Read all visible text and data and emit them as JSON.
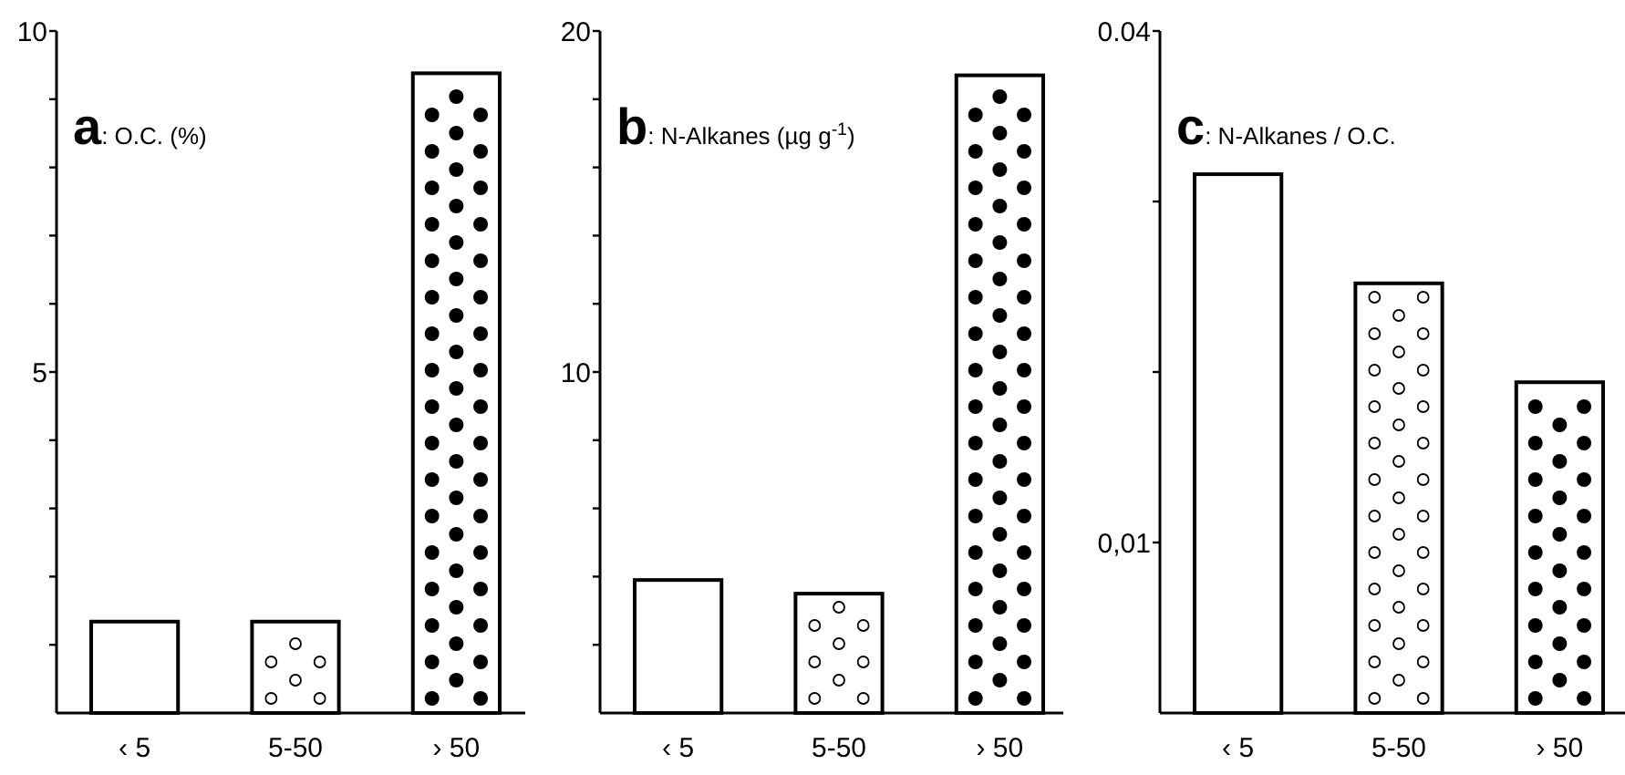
{
  "chart_data": [
    {
      "type": "bar",
      "title": "a: O.C. (%)",
      "categories": [
        "‹ 5",
        "5-50",
        "› 50"
      ],
      "values": [
        1.34,
        1.34,
        9.38
      ],
      "colors": [
        "#ffffff",
        "#ffffff",
        "#ffffff"
      ],
      "ylim": [
        0,
        10
      ],
      "yticks": [
        {
          "value": 1,
          "label": null
        },
        {
          "value": 2,
          "label": null
        },
        {
          "value": 3,
          "label": null
        },
        {
          "value": 4,
          "label": null
        },
        5,
        {
          "value": 6,
          "label": null
        },
        {
          "value": 7,
          "label": null
        },
        {
          "value": 8,
          "label": null
        },
        {
          "value": 9,
          "label": null
        },
        10
      ]
    },
    {
      "type": "bar",
      "title": "b: N-Alkanes (µg g$^{-1}$)",
      "categories": [
        "‹ 5",
        "5-50",
        "› 50"
      ],
      "values": [
        3.9,
        3.5,
        18.7
      ],
      "colors": [
        "#ffffff",
        "#ffffff",
        "#ffffff"
      ],
      "ylim": [
        0,
        20
      ],
      "yticks": [
        {
          "value": 2,
          "label": null
        },
        {
          "value": 4,
          "label": null
        },
        {
          "value": 6,
          "label": null
        },
        {
          "value": 8,
          "label": null
        },
        10,
        {
          "value": 12,
          "label": null
        },
        {
          "value": 14,
          "label": null
        },
        {
          "value": 16,
          "label": null
        },
        {
          "value": 18,
          "label": null
        },
        20
      ]
    },
    {
      "type": "bar",
      "title": "c: N-Alkanes / O.C.",
      "categories": [
        "‹ 5",
        "5-50",
        "› 50"
      ],
      "values": [
        0.0316,
        0.0252,
        0.0194
      ],
      "colors": [
        "#ffffff",
        "#ffffff",
        "#ffffff"
      ],
      "ylim": [
        0,
        0.04
      ],
      "yticks": [
        {
          "value": 0.01,
          "label": "0,01"
        },
        {
          "value": 0.02,
          "label": null
        },
        {
          "value": 0.03,
          "label": null
        },
        {
          "value": 0.04,
          "label": "0.04"
        }
      ]
    }
  ]
}
